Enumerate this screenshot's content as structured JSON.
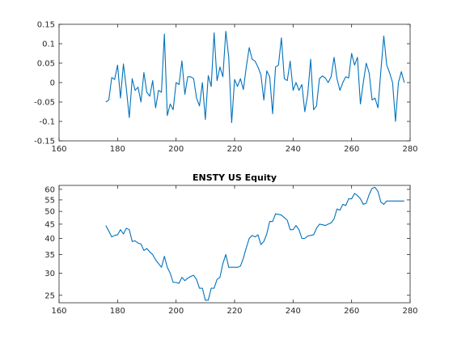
{
  "chart_data": [
    {
      "type": "line",
      "title": "",
      "xlabel": "",
      "ylabel": "",
      "xlim": [
        160,
        280
      ],
      "ylim": [
        -0.15,
        0.15
      ],
      "log_y": false,
      "grid": false,
      "xticks": [
        160,
        180,
        200,
        220,
        240,
        260,
        280
      ],
      "yticks": [
        -0.15,
        -0.1,
        -0.05,
        0,
        0.05,
        0.1,
        0.15
      ],
      "xtick_labels": [
        "160",
        "180",
        "200",
        "220",
        "240",
        "260",
        "280"
      ],
      "ytick_labels": [
        "-0.15",
        "-0.1",
        "-0.05",
        "0",
        "0.05",
        "0.1",
        "0.15"
      ],
      "color": "#0072BD",
      "series": [
        {
          "x": [
            176,
            177,
            178,
            179,
            180,
            181,
            182,
            183,
            184,
            185,
            186,
            187,
            188,
            189,
            190,
            191,
            192,
            193,
            194,
            195,
            196,
            197,
            198,
            199,
            200,
            201,
            202,
            203,
            204,
            205,
            206,
            207,
            208,
            209,
            210,
            211,
            212,
            213,
            214,
            215,
            216,
            217,
            218,
            219,
            220,
            221,
            222,
            223,
            224,
            225,
            226,
            227,
            228,
            229,
            230,
            231,
            232,
            233,
            234,
            235,
            236,
            237,
            238,
            239,
            240,
            241,
            242,
            243,
            244,
            245,
            246,
            247,
            248,
            249,
            250,
            251,
            252,
            253,
            254,
            255,
            256,
            257,
            258,
            259,
            260,
            261,
            262,
            263,
            264,
            265,
            266,
            267,
            268,
            269,
            270,
            271,
            272,
            273,
            274,
            275,
            276,
            277,
            278
          ],
          "y": [
            -0.05,
            -0.045,
            0.013,
            0.008,
            0.045,
            -0.04,
            0.048,
            -0.015,
            -0.09,
            0.01,
            -0.02,
            -0.012,
            -0.05,
            0.026,
            -0.025,
            -0.035,
            0.005,
            -0.065,
            -0.02,
            -0.025,
            0.125,
            -0.085,
            -0.055,
            -0.07,
            0.0,
            -0.005,
            0.056,
            -0.03,
            0.015,
            0.015,
            0.01,
            -0.04,
            -0.06,
            0.0,
            -0.095,
            0.018,
            -0.01,
            0.128,
            0.005,
            0.04,
            0.015,
            0.132,
            0.065,
            -0.103,
            0.008,
            -0.01,
            0.01,
            -0.018,
            0.04,
            0.09,
            0.06,
            0.055,
            0.04,
            0.02,
            -0.045,
            0.03,
            0.015,
            -0.08,
            0.04,
            0.045,
            0.115,
            0.01,
            0.005,
            0.055,
            -0.02,
            0.0,
            -0.02,
            -0.005,
            -0.075,
            -0.03,
            0.06,
            -0.07,
            -0.06,
            0.01,
            0.017,
            0.012,
            0.0,
            0.015,
            0.065,
            0.01,
            -0.02,
            0.0,
            0.015,
            0.012,
            0.075,
            0.045,
            0.065,
            -0.055,
            0.0,
            0.05,
            0.025,
            -0.045,
            -0.04,
            -0.065,
            0.03,
            0.12,
            0.045,
            0.025,
            0.0,
            -0.1,
            0.0,
            0.028,
            0.0
          ]
        }
      ]
    },
    {
      "type": "line",
      "title": "ENSTY US Equity",
      "xlabel": "",
      "ylabel": "",
      "xlim": [
        160,
        280
      ],
      "ylim": [
        23.5,
        62
      ],
      "log_y": true,
      "grid": false,
      "xticks": [
        160,
        180,
        200,
        220,
        240,
        260,
        280
      ],
      "yticks": [
        25,
        30,
        35,
        40,
        45,
        50,
        55,
        60
      ],
      "xtick_labels": [
        "160",
        "180",
        "200",
        "220",
        "240",
        "260",
        "280"
      ],
      "ytick_labels": [
        "25",
        "30",
        "35",
        "40",
        "45",
        "50",
        "55",
        "60"
      ],
      "color": "#0072BD",
      "series": [
        {
          "x": [
            176,
            177,
            178,
            179,
            180,
            181,
            182,
            183,
            184,
            185,
            186,
            187,
            188,
            189,
            190,
            191,
            192,
            193,
            194,
            195,
            196,
            197,
            198,
            199,
            200,
            201,
            202,
            203,
            204,
            205,
            206,
            207,
            208,
            209,
            210,
            211,
            212,
            213,
            214,
            215,
            216,
            217,
            218,
            219,
            220,
            221,
            222,
            223,
            224,
            225,
            226,
            227,
            228,
            229,
            230,
            231,
            232,
            233,
            234,
            235,
            236,
            237,
            238,
            239,
            240,
            241,
            242,
            243,
            244,
            245,
            246,
            247,
            248,
            249,
            250,
            251,
            252,
            253,
            254,
            255,
            256,
            257,
            258,
            259,
            260,
            261,
            262,
            263,
            264,
            265,
            266,
            267,
            268,
            269,
            270,
            271,
            272,
            273,
            274,
            275,
            276,
            277,
            278
          ],
          "y": [
            44.5,
            42.5,
            40.5,
            41,
            41.2,
            43,
            41.5,
            43.5,
            43,
            39,
            39.2,
            38.5,
            38.2,
            36.2,
            36.8,
            35.8,
            35,
            33.5,
            32.5,
            31.5,
            34.5,
            31.5,
            30,
            27.8,
            27.8,
            27.6,
            29,
            28.2,
            28.8,
            29.2,
            29.5,
            28.5,
            26.5,
            26.5,
            24,
            24,
            26.5,
            26.5,
            28.5,
            29,
            32.5,
            35,
            31.5,
            31.5,
            31.5,
            31.5,
            31.8,
            34,
            37,
            40,
            41,
            40.5,
            41.2,
            38,
            39,
            41.5,
            46,
            46,
            49,
            48.8,
            48.5,
            47.5,
            46.5,
            43,
            43,
            44.5,
            43,
            40,
            40,
            40.8,
            41,
            41.2,
            43.5,
            45,
            44.8,
            44.5,
            45,
            45.5,
            47,
            51,
            50.5,
            53,
            52.5,
            55.5,
            55.5,
            58,
            57,
            55.5,
            53,
            53.5,
            57.5,
            60.5,
            61,
            59,
            54,
            53,
            54.5,
            54.5,
            54.5,
            54.5,
            54.5,
            54.5,
            54.5
          ]
        }
      ]
    }
  ]
}
